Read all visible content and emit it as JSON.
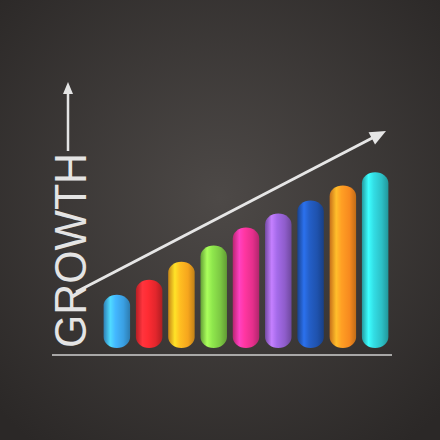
{
  "chart_data": {
    "type": "bar",
    "title": "GROWTH",
    "categories": [
      null,
      null,
      null,
      null,
      null,
      null,
      null,
      null,
      null
    ],
    "values": [
      53,
      68,
      86,
      102,
      120,
      134,
      147,
      162,
      175
    ],
    "colors": [
      "#3a9fe2",
      "#e2262c",
      "#f6a51d",
      "#7cc843",
      "#e52f8c",
      "#8f5dcb",
      "#1f52ad",
      "#f78a1f",
      "#2cc0c6"
    ],
    "ylim": [
      0,
      265
    ],
    "tick_labels": false
  }
}
